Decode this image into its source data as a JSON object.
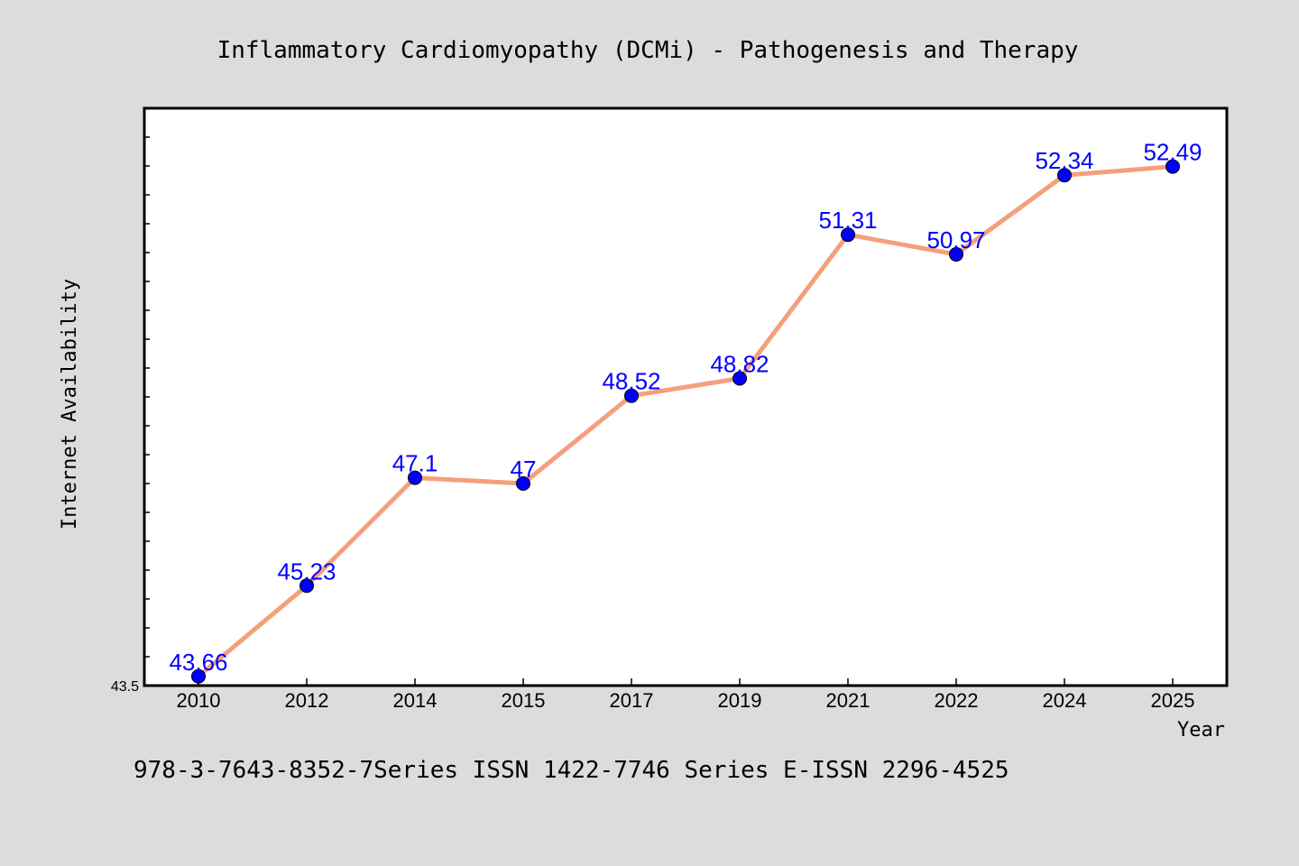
{
  "chart_data": {
    "type": "line",
    "title": "Inflammatory Cardiomyopathy (DCMi) - Pathogenesis and Therapy",
    "xlabel": "Year",
    "ylabel": "Internet Availability",
    "categories": [
      "2010",
      "2012",
      "2014",
      "2015",
      "2017",
      "2019",
      "2021",
      "2022",
      "2024",
      "2025"
    ],
    "series": [
      {
        "values": [
          43.66,
          45.23,
          47.1,
          47,
          48.52,
          48.82,
          51.31,
          50.97,
          52.34,
          52.49
        ],
        "data_labels": [
          "43.66",
          "45.23",
          "47.1",
          "47",
          "48.52",
          "48.82",
          "51.31",
          "50.97",
          "52.34",
          "52.49"
        ]
      }
    ],
    "yticks": [
      "43.5"
    ],
    "ylim": [
      43.5,
      53.5
    ],
    "grid": false,
    "colors": {
      "line": "#f4a07c",
      "marker": "#0000ff",
      "label": "#0000ff"
    }
  },
  "footer": "978-3-7643-8352-7Series ISSN 1422-7746 Series E-ISSN 2296-4525"
}
